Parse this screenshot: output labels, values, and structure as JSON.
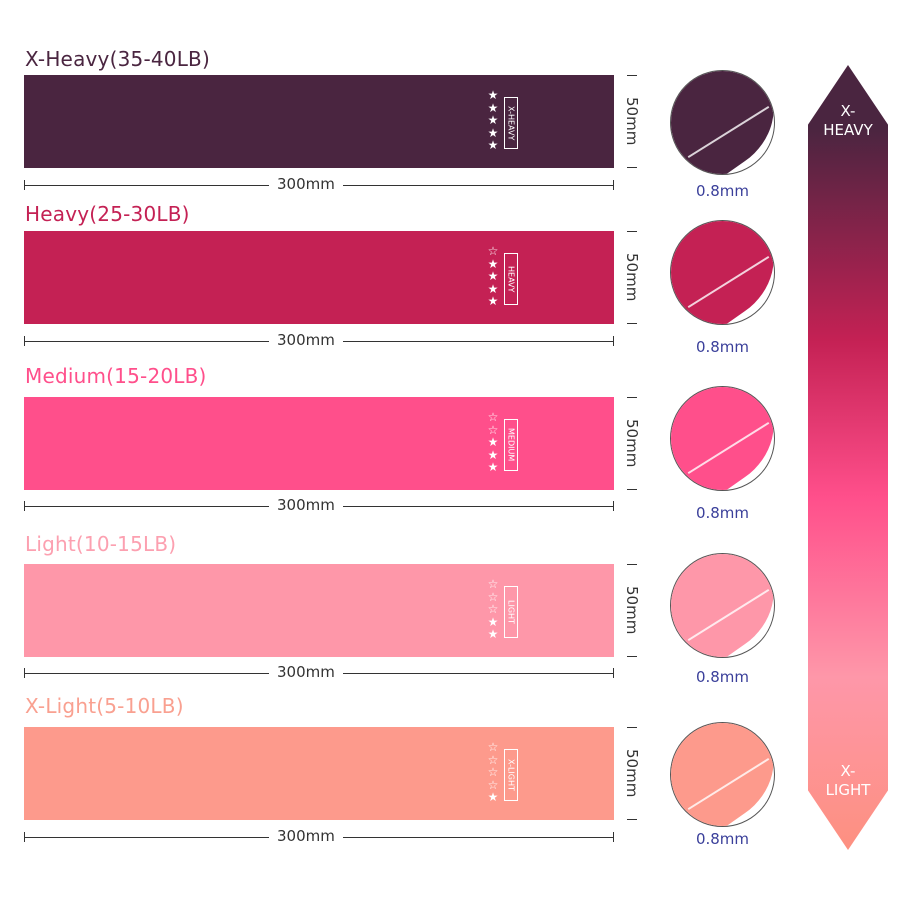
{
  "bands": [
    {
      "title": "X-Heavy(35-40LB)",
      "label": "X-HEAVY",
      "stars_filled": 5,
      "stars_total": 5,
      "color": "#4a2540",
      "title_color": "#4a2540",
      "length": "300mm",
      "width": "50mm",
      "thickness": "0.8mm"
    },
    {
      "title": "Heavy(25-30LB)",
      "label": "HEAVY",
      "stars_filled": 4,
      "stars_total": 5,
      "color": "#c42154",
      "title_color": "#c42154",
      "length": "300mm",
      "width": "50mm",
      "thickness": "0.8mm"
    },
    {
      "title": "Medium(15-20LB)",
      "label": "MEDIUM",
      "stars_filled": 3,
      "stars_total": 5,
      "color": "#ff4f8b",
      "title_color": "#ff4f8b",
      "length": "300mm",
      "width": "50mm",
      "thickness": "0.8mm"
    },
    {
      "title": "Light(10-15LB)",
      "label": "LIGHT",
      "stars_filled": 2,
      "stars_total": 5,
      "color": "#fe97a9",
      "title_color": "#fca0b0",
      "length": "300mm",
      "width": "50mm",
      "thickness": "0.8mm"
    },
    {
      "title": "X-Light(5-10LB)",
      "label": "X-LIGHT",
      "stars_filled": 1,
      "stars_total": 5,
      "color": "#fd9a8c",
      "title_color": "#f9a090",
      "length": "300mm",
      "width": "50mm",
      "thickness": "0.8mm"
    }
  ],
  "scale": {
    "top_line1": "X-",
    "top_line2": "HEAVY",
    "bottom_line1": "X-",
    "bottom_line2": "LIGHT"
  }
}
